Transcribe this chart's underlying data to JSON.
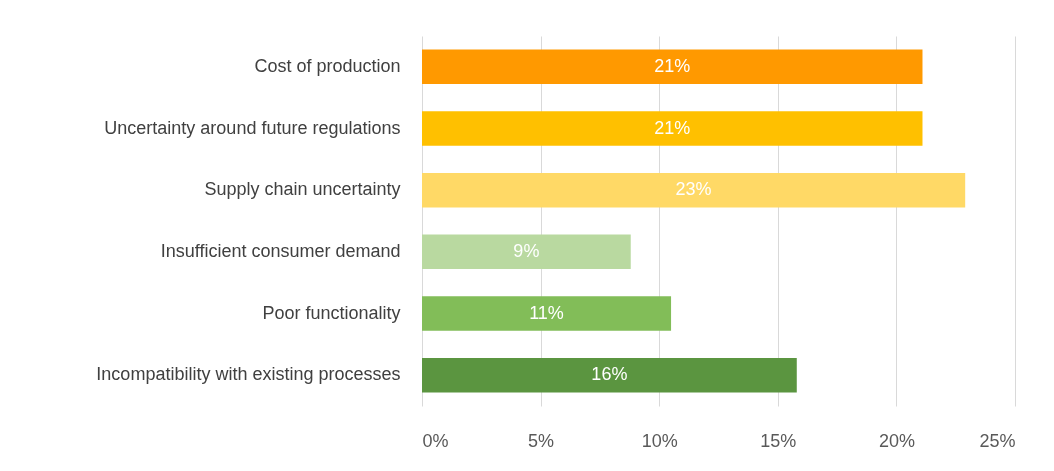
{
  "chart_data": {
    "type": "bar",
    "orientation": "horizontal",
    "categories": [
      "Cost of production",
      "Uncertainty around future regulations",
      "Supply chain uncertainty",
      "Insufficient consumer demand",
      "Poor functionality ",
      "Incompatibility with existing processes"
    ],
    "values": [
      21.1,
      21.1,
      22.9,
      8.8,
      10.5,
      15.8
    ],
    "colors": [
      "#ff9900",
      "#ffc000",
      "#ffd966",
      "#b9d9a0",
      "#82bd58",
      "#5b9540"
    ],
    "value_labels": [
      "21%",
      "21%",
      "23%",
      "9%",
      "11%",
      "16%"
    ],
    "xlim": [
      0,
      25
    ],
    "xticks": [
      {
        "value": 0,
        "label": "0%"
      },
      {
        "value": 5,
        "label": "5%"
      },
      {
        "value": 10,
        "label": "10%"
      },
      {
        "value": 15,
        "label": "15%"
      },
      {
        "value": 20,
        "label": "20%"
      },
      {
        "value": 25,
        "label": "25%"
      }
    ],
    "grid": "x",
    "legend": false
  }
}
